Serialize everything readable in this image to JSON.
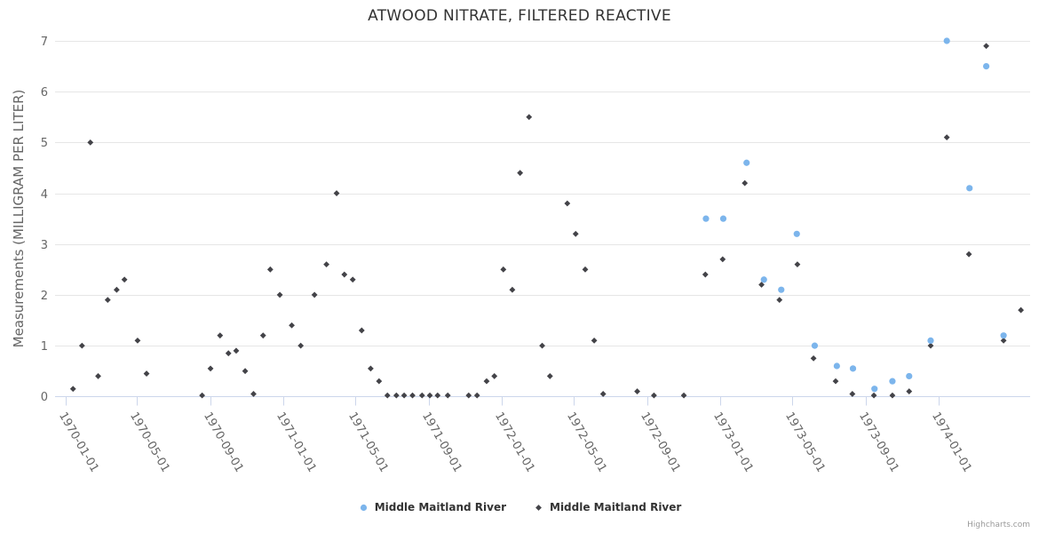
{
  "credit": "Highcharts.com",
  "legend": {
    "items": [
      {
        "label": "Middle Maitland River",
        "marker": "circle",
        "color": "#7cb5ec"
      },
      {
        "label": "Middle Maitland River",
        "marker": "diamond",
        "color": "#434348"
      }
    ]
  },
  "chart_data": {
    "type": "scatter",
    "title": "ATWOOD NITRATE, FILTERED REACTIVE",
    "xlabel": "",
    "ylabel": "Measurements (MILLIGRAM PER LITER)",
    "ylim": [
      0,
      7
    ],
    "xlim": [
      "1969-12-15",
      "1974-06-15"
    ],
    "grid": "horizontal",
    "legend_position": "bottom-center",
    "y_ticks": [
      0,
      1,
      2,
      3,
      4,
      5,
      6,
      7
    ],
    "x_ticks": [
      "1970-01-01",
      "1970-05-01",
      "1970-09-01",
      "1971-01-01",
      "1971-05-01",
      "1971-09-01",
      "1972-01-01",
      "1972-05-01",
      "1972-09-01",
      "1973-01-01",
      "1973-05-01",
      "1973-09-01",
      "1974-01-01"
    ],
    "style": {
      "grid_color": "#e6e6e6",
      "axis_line_color": "#ccd6eb",
      "axis_label_color": "#666666",
      "title_color": "#333333",
      "legend_text_color": "#333333",
      "credit_color": "#999999"
    },
    "series": [
      {
        "name": "Middle Maitland River",
        "marker": "circle",
        "color": "#7cb5ec",
        "points": [
          [
            "1972-12-08",
            3.5
          ],
          [
            "1973-01-06",
            3.5
          ],
          [
            "1973-02-14",
            4.6
          ],
          [
            "1973-03-15",
            2.3
          ],
          [
            "1973-04-13",
            2.1
          ],
          [
            "1973-05-09",
            3.2
          ],
          [
            "1973-06-08",
            1.0
          ],
          [
            "1973-07-15",
            0.6
          ],
          [
            "1973-08-11",
            0.55
          ],
          [
            "1973-09-16",
            0.15
          ],
          [
            "1973-10-16",
            0.3
          ],
          [
            "1973-11-13",
            0.4
          ],
          [
            "1973-12-19",
            1.1
          ],
          [
            "1974-01-15",
            7.0
          ],
          [
            "1974-02-22",
            4.1
          ],
          [
            "1974-03-22",
            6.5
          ],
          [
            "1974-04-20",
            1.2
          ]
        ]
      },
      {
        "name": "Middle Maitland River",
        "marker": "diamond",
        "color": "#434348",
        "points": [
          [
            "1970-01-14",
            0.15
          ],
          [
            "1970-01-29",
            1.0
          ],
          [
            "1970-02-12",
            5.0
          ],
          [
            "1970-02-25",
            0.4
          ],
          [
            "1970-03-13",
            1.9
          ],
          [
            "1970-03-28",
            2.1
          ],
          [
            "1970-04-10",
            2.3
          ],
          [
            "1970-05-02",
            1.1
          ],
          [
            "1970-05-17",
            0.45
          ],
          [
            "1970-08-18",
            0.02
          ],
          [
            "1970-09-01",
            0.55
          ],
          [
            "1970-09-17",
            1.2
          ],
          [
            "1970-10-01",
            0.85
          ],
          [
            "1970-10-14",
            0.9
          ],
          [
            "1970-10-29",
            0.5
          ],
          [
            "1970-11-12",
            0.05
          ],
          [
            "1970-11-28",
            1.2
          ],
          [
            "1970-12-10",
            2.5
          ],
          [
            "1970-12-26",
            2.0
          ],
          [
            "1971-01-15",
            1.4
          ],
          [
            "1971-01-30",
            1.0
          ],
          [
            "1971-02-22",
            2.0
          ],
          [
            "1971-03-14",
            2.6
          ],
          [
            "1971-03-31",
            4.0
          ],
          [
            "1971-04-13",
            2.4
          ],
          [
            "1971-04-27",
            2.3
          ],
          [
            "1971-05-12",
            1.3
          ],
          [
            "1971-05-27",
            0.55
          ],
          [
            "1971-06-10",
            0.3
          ],
          [
            "1971-06-24",
            0.02
          ],
          [
            "1971-07-09",
            0.02
          ],
          [
            "1971-07-22",
            0.02
          ],
          [
            "1971-08-05",
            0.02
          ],
          [
            "1971-08-21",
            0.02
          ],
          [
            "1971-09-03",
            0.02
          ],
          [
            "1971-09-16",
            0.02
          ],
          [
            "1971-10-03",
            0.02
          ],
          [
            "1971-11-07",
            0.02
          ],
          [
            "1971-11-21",
            0.02
          ],
          [
            "1971-12-07",
            0.3
          ],
          [
            "1971-12-20",
            0.4
          ],
          [
            "1972-01-04",
            2.5
          ],
          [
            "1972-01-19",
            2.1
          ],
          [
            "1972-02-01",
            4.4
          ],
          [
            "1972-02-16",
            5.5
          ],
          [
            "1972-03-09",
            1.0
          ],
          [
            "1972-03-22",
            0.4
          ],
          [
            "1972-04-20",
            3.8
          ],
          [
            "1972-05-04",
            3.2
          ],
          [
            "1972-05-20",
            2.5
          ],
          [
            "1972-06-04",
            1.1
          ],
          [
            "1972-06-19",
            0.05
          ],
          [
            "1972-08-15",
            0.1
          ],
          [
            "1972-09-12",
            0.02
          ],
          [
            "1972-11-01",
            0.02
          ],
          [
            "1972-12-07",
            2.4
          ],
          [
            "1973-01-05",
            2.7
          ],
          [
            "1973-02-11",
            4.2
          ],
          [
            "1973-03-11",
            2.2
          ],
          [
            "1973-04-10",
            1.9
          ],
          [
            "1973-05-10",
            2.6
          ],
          [
            "1973-06-06",
            0.75
          ],
          [
            "1973-07-13",
            0.3
          ],
          [
            "1973-08-10",
            0.05
          ],
          [
            "1973-09-15",
            0.02
          ],
          [
            "1973-10-16",
            0.02
          ],
          [
            "1973-11-13",
            0.1
          ],
          [
            "1973-12-19",
            1.0
          ],
          [
            "1974-01-15",
            5.1
          ],
          [
            "1974-02-21",
            2.8
          ],
          [
            "1974-03-22",
            6.9
          ],
          [
            "1974-04-20",
            1.1
          ],
          [
            "1974-05-19",
            1.7
          ]
        ]
      }
    ]
  }
}
